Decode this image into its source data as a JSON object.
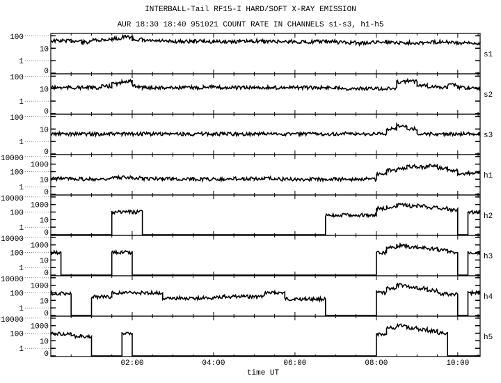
{
  "chart_data": {
    "type": "line",
    "title": "INTERBALL-Tail RF15-I HARD/SOFT X-RAY EMISSION",
    "subtitle": "AUR 18:30 18:40 951021  COUNT RATE IN CHANNELS s1-s3, h1-h5",
    "xlabel": "time UT",
    "x_tick_labels": [
      "02:00",
      "04:00",
      "06:00",
      "08:00",
      "10:00"
    ],
    "x_ticks_hours": [
      2,
      4,
      6,
      8,
      10
    ],
    "xlim_hours": [
      0,
      10.55
    ],
    "y_scale": "log (with 0 at bottom)",
    "grid": false,
    "sample_step_hours": 0.25,
    "panels": [
      {
        "name": "s1",
        "yticks": [
          "100",
          "10",
          "1",
          "0"
        ],
        "ymax_exp": 2,
        "values": [
          40,
          40,
          38,
          30,
          45,
          50,
          60,
          80,
          50,
          40,
          38,
          35,
          35,
          35,
          38,
          35,
          33,
          35,
          35,
          35,
          38,
          35,
          35,
          35,
          33,
          33,
          35,
          35,
          30,
          28,
          25,
          30,
          35,
          30,
          28,
          28,
          28,
          30,
          35,
          28,
          25,
          25,
          25
        ]
      },
      {
        "name": "s2",
        "yticks": [
          "100",
          "10",
          "1",
          "0"
        ],
        "ymax_exp": 2,
        "values": [
          12,
          12,
          12,
          12,
          12,
          15,
          25,
          40,
          15,
          12,
          12,
          12,
          12,
          12,
          12,
          15,
          12,
          12,
          12,
          12,
          12,
          12,
          12,
          12,
          12,
          12,
          12,
          12,
          12,
          10,
          10,
          10,
          10,
          10,
          35,
          40,
          20,
          15,
          12,
          20,
          12,
          10,
          10
        ]
      },
      {
        "name": "s3",
        "yticks": [
          "100",
          "10",
          "1",
          "0"
        ],
        "ymax_exp": 2,
        "values": [
          4,
          4,
          4,
          4,
          4,
          4,
          4,
          4,
          4,
          4,
          4,
          4,
          4,
          4,
          4,
          4,
          4,
          4,
          4,
          4,
          4,
          4,
          4,
          4,
          4,
          4,
          4,
          4,
          4,
          4,
          4,
          4,
          4,
          10,
          18,
          10,
          4,
          4,
          4,
          4,
          4,
          4,
          4
        ]
      },
      {
        "name": "h1",
        "yticks": [
          "10000",
          "1000",
          "100",
          "10",
          "1",
          "0"
        ],
        "ymax_exp": 4,
        "values": [
          12,
          12,
          12,
          10,
          10,
          12,
          15,
          20,
          15,
          12,
          12,
          12,
          10,
          10,
          10,
          10,
          10,
          10,
          12,
          12,
          12,
          12,
          10,
          10,
          10,
          10,
          10,
          10,
          10,
          10,
          10,
          10,
          50,
          150,
          300,
          500,
          400,
          600,
          300,
          150,
          60,
          60,
          80
        ]
      },
      {
        "name": "h2",
        "yticks": [
          "10000",
          "1000",
          "100",
          "10",
          "1",
          "0"
        ],
        "ymax_exp": 4,
        "values": [
          0,
          0,
          0,
          0,
          0,
          0,
          100,
          100,
          100,
          0,
          0,
          0,
          0,
          0,
          0,
          0,
          0,
          0,
          0,
          0,
          0,
          0,
          0,
          0,
          0,
          0,
          0,
          40,
          40,
          40,
          40,
          40,
          300,
          500,
          800,
          600,
          700,
          400,
          300,
          200,
          0,
          100,
          100
        ]
      },
      {
        "name": "h3",
        "yticks": [
          "10000",
          "1000",
          "100",
          "10",
          "1",
          "0"
        ],
        "ymax_exp": 4,
        "values": [
          100,
          0,
          0,
          0,
          0,
          0,
          100,
          100,
          0,
          0,
          0,
          0,
          0,
          0,
          0,
          0,
          0,
          0,
          0,
          0,
          0,
          0,
          0,
          0,
          0,
          0,
          0,
          0,
          0,
          0,
          0,
          0,
          100,
          500,
          800,
          500,
          400,
          300,
          200,
          100,
          0,
          100,
          100
        ]
      },
      {
        "name": "h4",
        "yticks": [
          "10000",
          "1000",
          "100",
          "10",
          "1",
          "0"
        ],
        "ymax_exp": 4,
        "values": [
          80,
          80,
          0,
          0,
          30,
          30,
          100,
          100,
          100,
          100,
          100,
          20,
          20,
          20,
          20,
          20,
          30,
          30,
          30,
          30,
          30,
          100,
          100,
          15,
          15,
          15,
          15,
          0,
          0,
          0,
          0,
          0,
          100,
          400,
          1000,
          600,
          400,
          200,
          80,
          60,
          0,
          100,
          100
        ]
      },
      {
        "name": "h5",
        "yticks": [
          "10000",
          "1000",
          "100",
          "10",
          "1",
          "0"
        ],
        "ymax_exp": 4,
        "values": [
          80,
          80,
          40,
          40,
          0,
          0,
          0,
          80,
          0,
          0,
          0,
          0,
          0,
          0,
          0,
          0,
          0,
          0,
          0,
          0,
          0,
          0,
          0,
          0,
          0,
          0,
          0,
          0,
          0,
          0,
          0,
          0,
          80,
          500,
          1000,
          500,
          300,
          200,
          100,
          0,
          0,
          0,
          0
        ]
      }
    ]
  }
}
